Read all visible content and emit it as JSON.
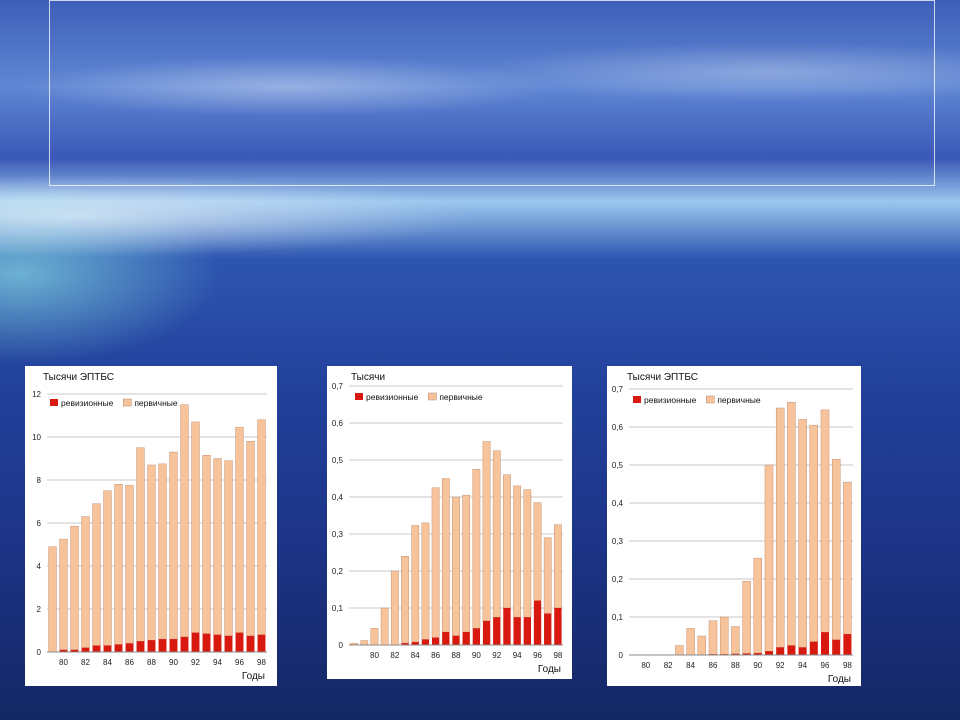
{
  "chart_data": [
    {
      "type": "bar",
      "ylabel": "Тысячи ЭПТБС",
      "xlabel": "Годы",
      "ylim": [
        0,
        12
      ],
      "yticks": [
        "0",
        "2",
        "4",
        "6",
        "8",
        "10",
        "12"
      ],
      "xtick_labels": [
        "80",
        "82",
        "84",
        "86",
        "88",
        "90",
        "92",
        "94",
        "96",
        "98"
      ],
      "categories": [
        "79",
        "80",
        "81",
        "82",
        "83",
        "84",
        "85",
        "86",
        "87",
        "88",
        "89",
        "90",
        "91",
        "92",
        "93",
        "94",
        "95",
        "96",
        "97",
        "98"
      ],
      "stacked": true,
      "series": [
        {
          "name": "ревизионные",
          "color": "#d7190f",
          "values": [
            0.0,
            0.1,
            0.1,
            0.2,
            0.3,
            0.3,
            0.35,
            0.4,
            0.5,
            0.55,
            0.6,
            0.6,
            0.7,
            0.9,
            0.85,
            0.8,
            0.75,
            0.9,
            0.75,
            0.8
          ]
        },
        {
          "name": "первичные",
          "color": "#f6c39b",
          "values": [
            4.9,
            5.15,
            5.75,
            6.1,
            6.6,
            7.2,
            7.45,
            7.35,
            9.0,
            8.15,
            8.15,
            8.7,
            10.8,
            9.8,
            8.3,
            8.2,
            8.15,
            9.55,
            9.05,
            10.0
          ]
        }
      ]
    },
    {
      "type": "bar",
      "ylabel": "Тысячи",
      "xlabel": "Годы",
      "ylim": [
        0,
        0.7
      ],
      "yticks": [
        "0",
        "0,1",
        "0,2",
        "0,3",
        "0,4",
        "0,5",
        "0,6",
        "0,7"
      ],
      "xtick_labels": [
        "80",
        "82",
        "84",
        "86",
        "88",
        "90",
        "92",
        "94",
        "96",
        "98"
      ],
      "categories": [
        "78",
        "79",
        "80",
        "81",
        "82",
        "83",
        "84",
        "85",
        "86",
        "87",
        "88",
        "89",
        "90",
        "91",
        "92",
        "93",
        "94",
        "95",
        "96",
        "97",
        "98"
      ],
      "stacked": true,
      "series": [
        {
          "name": "ревизионные",
          "color": "#d7190f",
          "values": [
            0,
            0,
            0,
            0,
            0,
            0.005,
            0.008,
            0.015,
            0.02,
            0.035,
            0.025,
            0.035,
            0.045,
            0.065,
            0.075,
            0.1,
            0.075,
            0.075,
            0.12,
            0.085,
            0.1
          ]
        },
        {
          "name": "первичные",
          "color": "#f6c39b",
          "values": [
            0.005,
            0.012,
            0.045,
            0.1,
            0.2,
            0.235,
            0.315,
            0.315,
            0.405,
            0.415,
            0.375,
            0.37,
            0.43,
            0.485,
            0.45,
            0.36,
            0.355,
            0.345,
            0.265,
            0.205,
            0.225
          ]
        }
      ]
    },
    {
      "type": "bar",
      "ylabel": "Тысячи ЭПТБС",
      "xlabel": "Годы",
      "ylim": [
        0,
        0.7
      ],
      "yticks": [
        "0",
        "0,1",
        "0,2",
        "0,3",
        "0,4",
        "0,5",
        "0,6",
        "0,7"
      ],
      "xtick_labels": [
        "80",
        "82",
        "84",
        "86",
        "88",
        "90",
        "92",
        "94",
        "96",
        "98"
      ],
      "categories": [
        "79",
        "80",
        "81",
        "82",
        "83",
        "84",
        "85",
        "86",
        "87",
        "88",
        "89",
        "90",
        "91",
        "92",
        "93",
        "94",
        "95",
        "96",
        "97",
        "98"
      ],
      "stacked": true,
      "series": [
        {
          "name": "ревизионные",
          "color": "#d7190f",
          "values": [
            0,
            0,
            0,
            0,
            0,
            0,
            0,
            0.002,
            0.002,
            0.003,
            0.004,
            0.005,
            0.01,
            0.02,
            0.025,
            0.02,
            0.035,
            0.06,
            0.04,
            0.055
          ]
        },
        {
          "name": "первичные",
          "color": "#f6c39b",
          "values": [
            0,
            0,
            0,
            0,
            0.025,
            0.07,
            0.05,
            0.088,
            0.098,
            0.072,
            0.19,
            0.25,
            0.49,
            0.63,
            0.64,
            0.6,
            0.57,
            0.585,
            0.475,
            0.4
          ]
        }
      ]
    }
  ]
}
